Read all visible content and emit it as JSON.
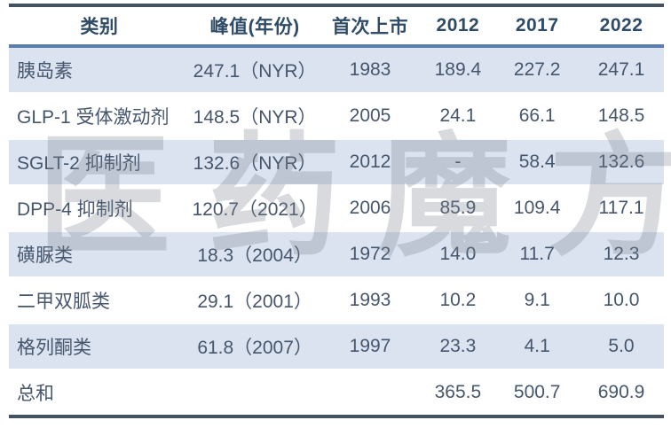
{
  "watermark_text": "医药魔方",
  "colors": {
    "border_dark": "#42525e",
    "border_accent": "#5b7fa8",
    "band": "#dbe3f1",
    "header_text": "#2e4c68",
    "body_text": "#46566d",
    "watermark": "rgba(125,132,142,0.30)"
  },
  "table": {
    "columns": [
      {
        "label": "类别"
      },
      {
        "label": "峰值(年份)"
      },
      {
        "label": "首次上市"
      },
      {
        "label": "2012"
      },
      {
        "label": "2017"
      },
      {
        "label": "2022"
      }
    ],
    "column_widths": [
      "27.6%",
      "19.9%",
      "15.3%",
      "11.5%",
      "12.7%",
      "13.0%"
    ],
    "rows": [
      [
        "胰岛素",
        "247.1（NYR）",
        "1983",
        "189.4",
        "227.2",
        "247.1"
      ],
      [
        "GLP-1 受体激动剂",
        "148.5（NYR）",
        "2005",
        "24.1",
        "66.1",
        "148.5"
      ],
      [
        "SGLT-2 抑制剂",
        "132.6（NYR）",
        "2012",
        "-",
        "58.4",
        "132.6"
      ],
      [
        "DPP-4 抑制剂",
        "120.7（2021）",
        "2006",
        "85.9",
        "109.4",
        "117.1"
      ],
      [
        "磺脲类",
        "18.3（2004）",
        "1972",
        "14.0",
        "11.7",
        "12.3"
      ],
      [
        "二甲双胍类",
        "29.1（2001）",
        "1993",
        "10.2",
        "9.1",
        "10.0"
      ],
      [
        "格列酮类",
        "61.8（2007）",
        "1997",
        "23.3",
        "4.1",
        "5.0"
      ],
      [
        "总和",
        "",
        "",
        "365.5",
        "500.7",
        "690.9"
      ]
    ]
  }
}
